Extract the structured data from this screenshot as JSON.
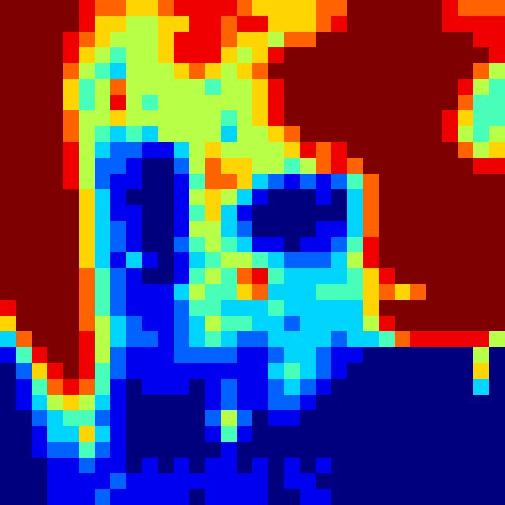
{
  "chart_data": {
    "type": "heatmap",
    "tick_labels": false,
    "zlim": [
      0,
      9
    ],
    "values": [
      [
        9,
        9,
        9,
        9,
        9,
        8,
        7,
        7,
        6,
        6,
        7,
        8,
        8,
        8,
        8,
        7,
        6,
        6,
        6,
        6,
        7,
        7,
        9,
        9,
        9,
        9,
        9,
        9,
        8,
        7,
        7,
        7
      ],
      [
        9,
        9,
        9,
        9,
        9,
        8,
        6,
        6,
        5,
        5,
        6,
        6,
        8,
        8,
        7,
        8,
        8,
        6,
        6,
        6,
        7,
        8,
        9,
        9,
        9,
        9,
        9,
        9,
        8,
        8,
        8,
        8
      ],
      [
        9,
        9,
        9,
        9,
        8,
        7,
        6,
        5,
        5,
        5,
        6,
        8,
        8,
        8,
        7,
        6,
        6,
        5,
        7,
        7,
        9,
        9,
        9,
        9,
        9,
        9,
        9,
        9,
        9,
        9,
        8,
        8
      ],
      [
        9,
        9,
        9,
        9,
        8,
        6,
        5,
        4,
        5,
        5,
        6,
        8,
        8,
        8,
        6,
        5,
        6,
        8,
        9,
        9,
        9,
        9,
        9,
        9,
        9,
        9,
        9,
        9,
        9,
        9,
        9,
        8
      ],
      [
        9,
        9,
        9,
        9,
        7,
        5,
        4,
        3,
        5,
        5,
        5,
        6,
        7,
        6,
        5,
        6,
        7,
        9,
        9,
        9,
        9,
        9,
        9,
        9,
        9,
        9,
        9,
        9,
        9,
        9,
        7,
        5
      ],
      [
        9,
        9,
        9,
        9,
        6,
        4,
        5,
        7,
        5,
        5,
        5,
        5,
        5,
        4,
        5,
        5,
        6,
        8,
        9,
        9,
        9,
        9,
        9,
        9,
        9,
        9,
        9,
        9,
        9,
        8,
        5,
        4
      ],
      [
        9,
        9,
        9,
        9,
        6,
        4,
        5,
        8,
        5,
        4,
        5,
        5,
        5,
        5,
        5,
        5,
        6,
        8,
        9,
        9,
        9,
        9,
        9,
        9,
        9,
        9,
        9,
        9,
        9,
        7,
        4,
        4
      ],
      [
        9,
        9,
        9,
        9,
        7,
        5,
        5,
        6,
        5,
        5,
        5,
        5,
        5,
        5,
        4,
        5,
        6,
        8,
        9,
        9,
        9,
        9,
        9,
        9,
        9,
        9,
        9,
        9,
        8,
        6,
        4,
        4
      ],
      [
        9,
        9,
        9,
        9,
        7,
        5,
        4,
        3,
        4,
        3,
        5,
        5,
        5,
        5,
        3,
        5,
        5,
        6,
        7,
        9,
        9,
        9,
        9,
        9,
        9,
        9,
        9,
        9,
        8,
        5,
        4,
        5
      ],
      [
        9,
        9,
        9,
        9,
        8,
        5,
        3,
        2,
        2,
        1,
        1,
        3,
        5,
        6,
        5,
        5,
        5,
        5,
        6,
        8,
        7,
        8,
        9,
        9,
        9,
        9,
        9,
        9,
        9,
        7,
        5,
        6
      ],
      [
        9,
        9,
        9,
        9,
        8,
        5,
        2,
        2,
        1,
        0,
        0,
        2,
        5,
        7,
        6,
        6,
        5,
        5,
        4,
        5,
        7,
        8,
        7,
        9,
        9,
        9,
        9,
        9,
        9,
        9,
        8,
        8
      ],
      [
        9,
        9,
        9,
        9,
        8,
        5,
        2,
        1,
        1,
        0,
        0,
        1,
        4,
        7,
        7,
        6,
        3,
        2,
        1,
        2,
        1,
        2,
        4,
        7,
        9,
        9,
        9,
        9,
        9,
        9,
        9,
        9
      ],
      [
        9,
        9,
        9,
        9,
        9,
        6,
        3,
        1,
        0,
        0,
        0,
        1,
        5,
        6,
        5,
        3,
        1,
        0,
        0,
        0,
        1,
        0,
        3,
        7,
        9,
        9,
        9,
        9,
        9,
        9,
        9,
        9
      ],
      [
        9,
        9,
        9,
        9,
        9,
        6,
        3,
        1,
        1,
        0,
        0,
        1,
        4,
        6,
        3,
        1,
        0,
        0,
        0,
        0,
        0,
        0,
        3,
        7,
        9,
        9,
        9,
        9,
        9,
        9,
        9,
        9
      ],
      [
        9,
        9,
        9,
        9,
        9,
        6,
        3,
        2,
        1,
        0,
        0,
        1,
        5,
        5,
        3,
        2,
        0,
        0,
        0,
        0,
        1,
        1,
        3,
        7,
        9,
        9,
        9,
        9,
        9,
        9,
        9,
        9
      ],
      [
        9,
        9,
        9,
        9,
        9,
        6,
        3,
        2,
        1,
        0,
        0,
        2,
        4,
        5,
        4,
        3,
        1,
        1,
        0,
        1,
        1,
        2,
        4,
        8,
        9,
        9,
        9,
        9,
        9,
        9,
        9,
        9
      ],
      [
        9,
        9,
        9,
        9,
        9,
        6,
        3,
        1,
        3,
        1,
        0,
        1,
        3,
        4,
        5,
        5,
        4,
        3,
        2,
        2,
        2,
        3,
        5,
        8,
        9,
        9,
        9,
        9,
        9,
        9,
        9,
        9
      ],
      [
        9,
        9,
        9,
        9,
        9,
        7,
        4,
        2,
        1,
        0,
        0,
        1,
        4,
        5,
        4,
        7,
        8,
        4,
        3,
        3,
        3,
        3,
        4,
        6,
        8,
        9,
        9,
        9,
        9,
        9,
        9,
        9
      ],
      [
        9,
        9,
        9,
        9,
        9,
        7,
        4,
        2,
        1,
        1,
        1,
        3,
        5,
        4,
        4,
        6,
        7,
        3,
        3,
        3,
        4,
        4,
        4,
        6,
        7,
        6,
        7,
        9,
        9,
        9,
        9,
        9
      ],
      [
        8,
        9,
        9,
        9,
        9,
        7,
        4,
        2,
        1,
        1,
        1,
        2,
        4,
        4,
        3,
        3,
        3,
        4,
        3,
        3,
        3,
        3,
        3,
        6,
        9,
        9,
        9,
        9,
        9,
        9,
        9,
        9
      ],
      [
        6,
        9,
        9,
        9,
        9,
        7,
        5,
        3,
        2,
        1,
        1,
        2,
        3,
        5,
        4,
        4,
        3,
        3,
        2,
        3,
        3,
        3,
        3,
        5,
        8,
        9,
        9,
        9,
        9,
        9,
        9,
        9
      ],
      [
        3,
        7,
        9,
        9,
        9,
        8,
        5,
        3,
        2,
        2,
        1,
        2,
        3,
        4,
        3,
        2,
        2,
        3,
        3,
        3,
        3,
        2,
        3,
        3,
        4,
        7,
        8,
        8,
        8,
        8,
        8,
        5
      ],
      [
        1,
        4,
        8,
        9,
        9,
        8,
        5,
        2,
        1,
        1,
        1,
        2,
        2,
        2,
        2,
        1,
        1,
        2,
        3,
        3,
        2,
        1,
        1,
        0,
        0,
        0,
        0,
        0,
        0,
        0,
        5,
        0
      ],
      [
        0,
        2,
        6,
        8,
        9,
        8,
        4,
        2,
        1,
        1,
        1,
        1,
        1,
        1,
        1,
        1,
        1,
        3,
        4,
        3,
        2,
        1,
        0,
        0,
        0,
        0,
        0,
        0,
        0,
        0,
        6,
        0
      ],
      [
        0,
        1,
        4,
        7,
        8,
        7,
        4,
        1,
        0,
        1,
        1,
        1,
        0,
        1,
        2,
        1,
        1,
        2,
        3,
        2,
        1,
        0,
        0,
        0,
        0,
        0,
        0,
        0,
        0,
        0,
        3,
        0
      ],
      [
        0,
        1,
        3,
        5,
        6,
        5,
        3,
        1,
        0,
        0,
        0,
        0,
        0,
        1,
        2,
        1,
        1,
        2,
        2,
        1,
        0,
        0,
        0,
        0,
        0,
        0,
        0,
        0,
        0,
        0,
        0,
        0
      ],
      [
        0,
        0,
        2,
        3,
        4,
        4,
        2,
        1,
        0,
        0,
        0,
        0,
        0,
        2,
        5,
        2,
        0,
        1,
        1,
        0,
        0,
        0,
        0,
        0,
        0,
        0,
        0,
        0,
        0,
        0,
        0,
        0
      ],
      [
        0,
        0,
        1,
        3,
        3,
        6,
        3,
        1,
        0,
        0,
        0,
        0,
        0,
        1,
        4,
        1,
        0,
        0,
        0,
        0,
        0,
        0,
        0,
        0,
        0,
        0,
        0,
        0,
        0,
        0,
        0,
        0
      ],
      [
        0,
        0,
        1,
        2,
        2,
        4,
        2,
        1,
        0,
        0,
        0,
        0,
        0,
        0,
        1,
        0,
        0,
        0,
        0,
        0,
        0,
        0,
        0,
        0,
        0,
        0,
        0,
        0,
        0,
        0,
        0,
        0
      ],
      [
        0,
        0,
        0,
        1,
        1,
        2,
        1,
        1,
        0,
        1,
        0,
        1,
        0,
        1,
        1,
        0,
        1,
        0,
        1,
        0,
        1,
        0,
        0,
        0,
        0,
        0,
        0,
        0,
        0,
        0,
        0,
        0
      ],
      [
        0,
        0,
        0,
        1,
        1,
        1,
        1,
        2,
        1,
        1,
        1,
        1,
        1,
        1,
        1,
        1,
        1,
        0,
        1,
        1,
        0,
        0,
        0,
        0,
        0,
        0,
        0,
        0,
        0,
        0,
        0,
        0
      ],
      [
        0,
        0,
        0,
        1,
        1,
        1,
        2,
        1,
        1,
        1,
        1,
        1,
        0,
        1,
        1,
        1,
        1,
        0,
        0,
        1,
        1,
        0,
        0,
        0,
        0,
        0,
        0,
        0,
        0,
        0,
        0,
        0
      ]
    ]
  }
}
